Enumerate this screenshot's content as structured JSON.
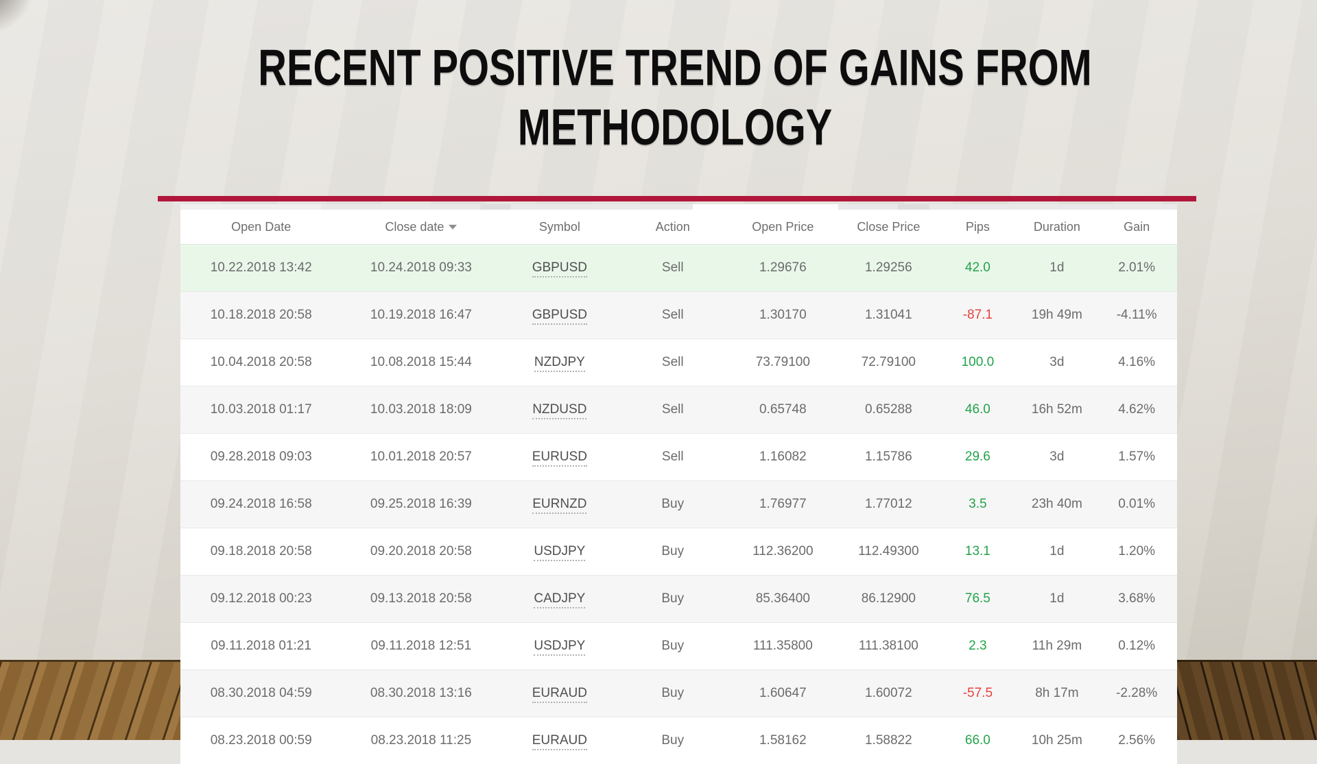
{
  "slide": {
    "title_line1": "RECENT POSITIVE TREND OF GAINS FROM",
    "title_line2": "METHODOLOGY",
    "accent_color": "#b1173b"
  },
  "colors": {
    "pips_positive": "#22a34a",
    "pips_negative": "#e5423d",
    "highlight_row_background": "#e9f7e9",
    "zebra_row_background": "#f6f6f6"
  },
  "table": {
    "sorted_by": "close_date",
    "sort_direction": "descending",
    "columns": [
      {
        "key": "open_date",
        "label": "Open Date"
      },
      {
        "key": "close_date",
        "label": "Close date",
        "sorted": true
      },
      {
        "key": "symbol",
        "label": "Symbol"
      },
      {
        "key": "action",
        "label": "Action"
      },
      {
        "key": "open_price",
        "label": "Open Price"
      },
      {
        "key": "close_price",
        "label": "Close Price"
      },
      {
        "key": "pips",
        "label": "Pips"
      },
      {
        "key": "duration",
        "label": "Duration"
      },
      {
        "key": "gain",
        "label": "Gain"
      }
    ],
    "rows": [
      {
        "open_date": "10.22.2018 13:42",
        "close_date": "10.24.2018 09:33",
        "symbol": "GBPUSD",
        "action": "Sell",
        "open_price": "1.29676",
        "close_price": "1.29256",
        "pips": "42.0",
        "duration": "1d",
        "gain": "2.01%",
        "highlight": true
      },
      {
        "open_date": "10.18.2018 20:58",
        "close_date": "10.19.2018 16:47",
        "symbol": "GBPUSD",
        "action": "Sell",
        "open_price": "1.30170",
        "close_price": "1.31041",
        "pips": "-87.1",
        "duration": "19h 49m",
        "gain": "-4.11%",
        "highlight": false
      },
      {
        "open_date": "10.04.2018 20:58",
        "close_date": "10.08.2018 15:44",
        "symbol": "NZDJPY",
        "action": "Sell",
        "open_price": "73.79100",
        "close_price": "72.79100",
        "pips": "100.0",
        "duration": "3d",
        "gain": "4.16%",
        "highlight": false
      },
      {
        "open_date": "10.03.2018 01:17",
        "close_date": "10.03.2018 18:09",
        "symbol": "NZDUSD",
        "action": "Sell",
        "open_price": "0.65748",
        "close_price": "0.65288",
        "pips": "46.0",
        "duration": "16h 52m",
        "gain": "4.62%",
        "highlight": false
      },
      {
        "open_date": "09.28.2018 09:03",
        "close_date": "10.01.2018 20:57",
        "symbol": "EURUSD",
        "action": "Sell",
        "open_price": "1.16082",
        "close_price": "1.15786",
        "pips": "29.6",
        "duration": "3d",
        "gain": "1.57%",
        "highlight": false
      },
      {
        "open_date": "09.24.2018 16:58",
        "close_date": "09.25.2018 16:39",
        "symbol": "EURNZD",
        "action": "Buy",
        "open_price": "1.76977",
        "close_price": "1.77012",
        "pips": "3.5",
        "duration": "23h 40m",
        "gain": "0.01%",
        "highlight": false
      },
      {
        "open_date": "09.18.2018 20:58",
        "close_date": "09.20.2018 20:58",
        "symbol": "USDJPY",
        "action": "Buy",
        "open_price": "112.36200",
        "close_price": "112.49300",
        "pips": "13.1",
        "duration": "1d",
        "gain": "1.20%",
        "highlight": false
      },
      {
        "open_date": "09.12.2018 00:23",
        "close_date": "09.13.2018 20:58",
        "symbol": "CADJPY",
        "action": "Buy",
        "open_price": "85.36400",
        "close_price": "86.12900",
        "pips": "76.5",
        "duration": "1d",
        "gain": "3.68%",
        "highlight": false
      },
      {
        "open_date": "09.11.2018 01:21",
        "close_date": "09.11.2018 12:51",
        "symbol": "USDJPY",
        "action": "Buy",
        "open_price": "111.35800",
        "close_price": "111.38100",
        "pips": "2.3",
        "duration": "11h 29m",
        "gain": "0.12%",
        "highlight": false
      },
      {
        "open_date": "08.30.2018 04:59",
        "close_date": "08.30.2018 13:16",
        "symbol": "EURAUD",
        "action": "Buy",
        "open_price": "1.60647",
        "close_price": "1.60072",
        "pips": "-57.5",
        "duration": "8h 17m",
        "gain": "-2.28%",
        "highlight": false
      },
      {
        "open_date": "08.23.2018 00:59",
        "close_date": "08.23.2018 11:25",
        "symbol": "EURAUD",
        "action": "Buy",
        "open_price": "1.58162",
        "close_price": "1.58822",
        "pips": "66.0",
        "duration": "10h 25m",
        "gain": "2.56%",
        "highlight": false
      }
    ]
  }
}
